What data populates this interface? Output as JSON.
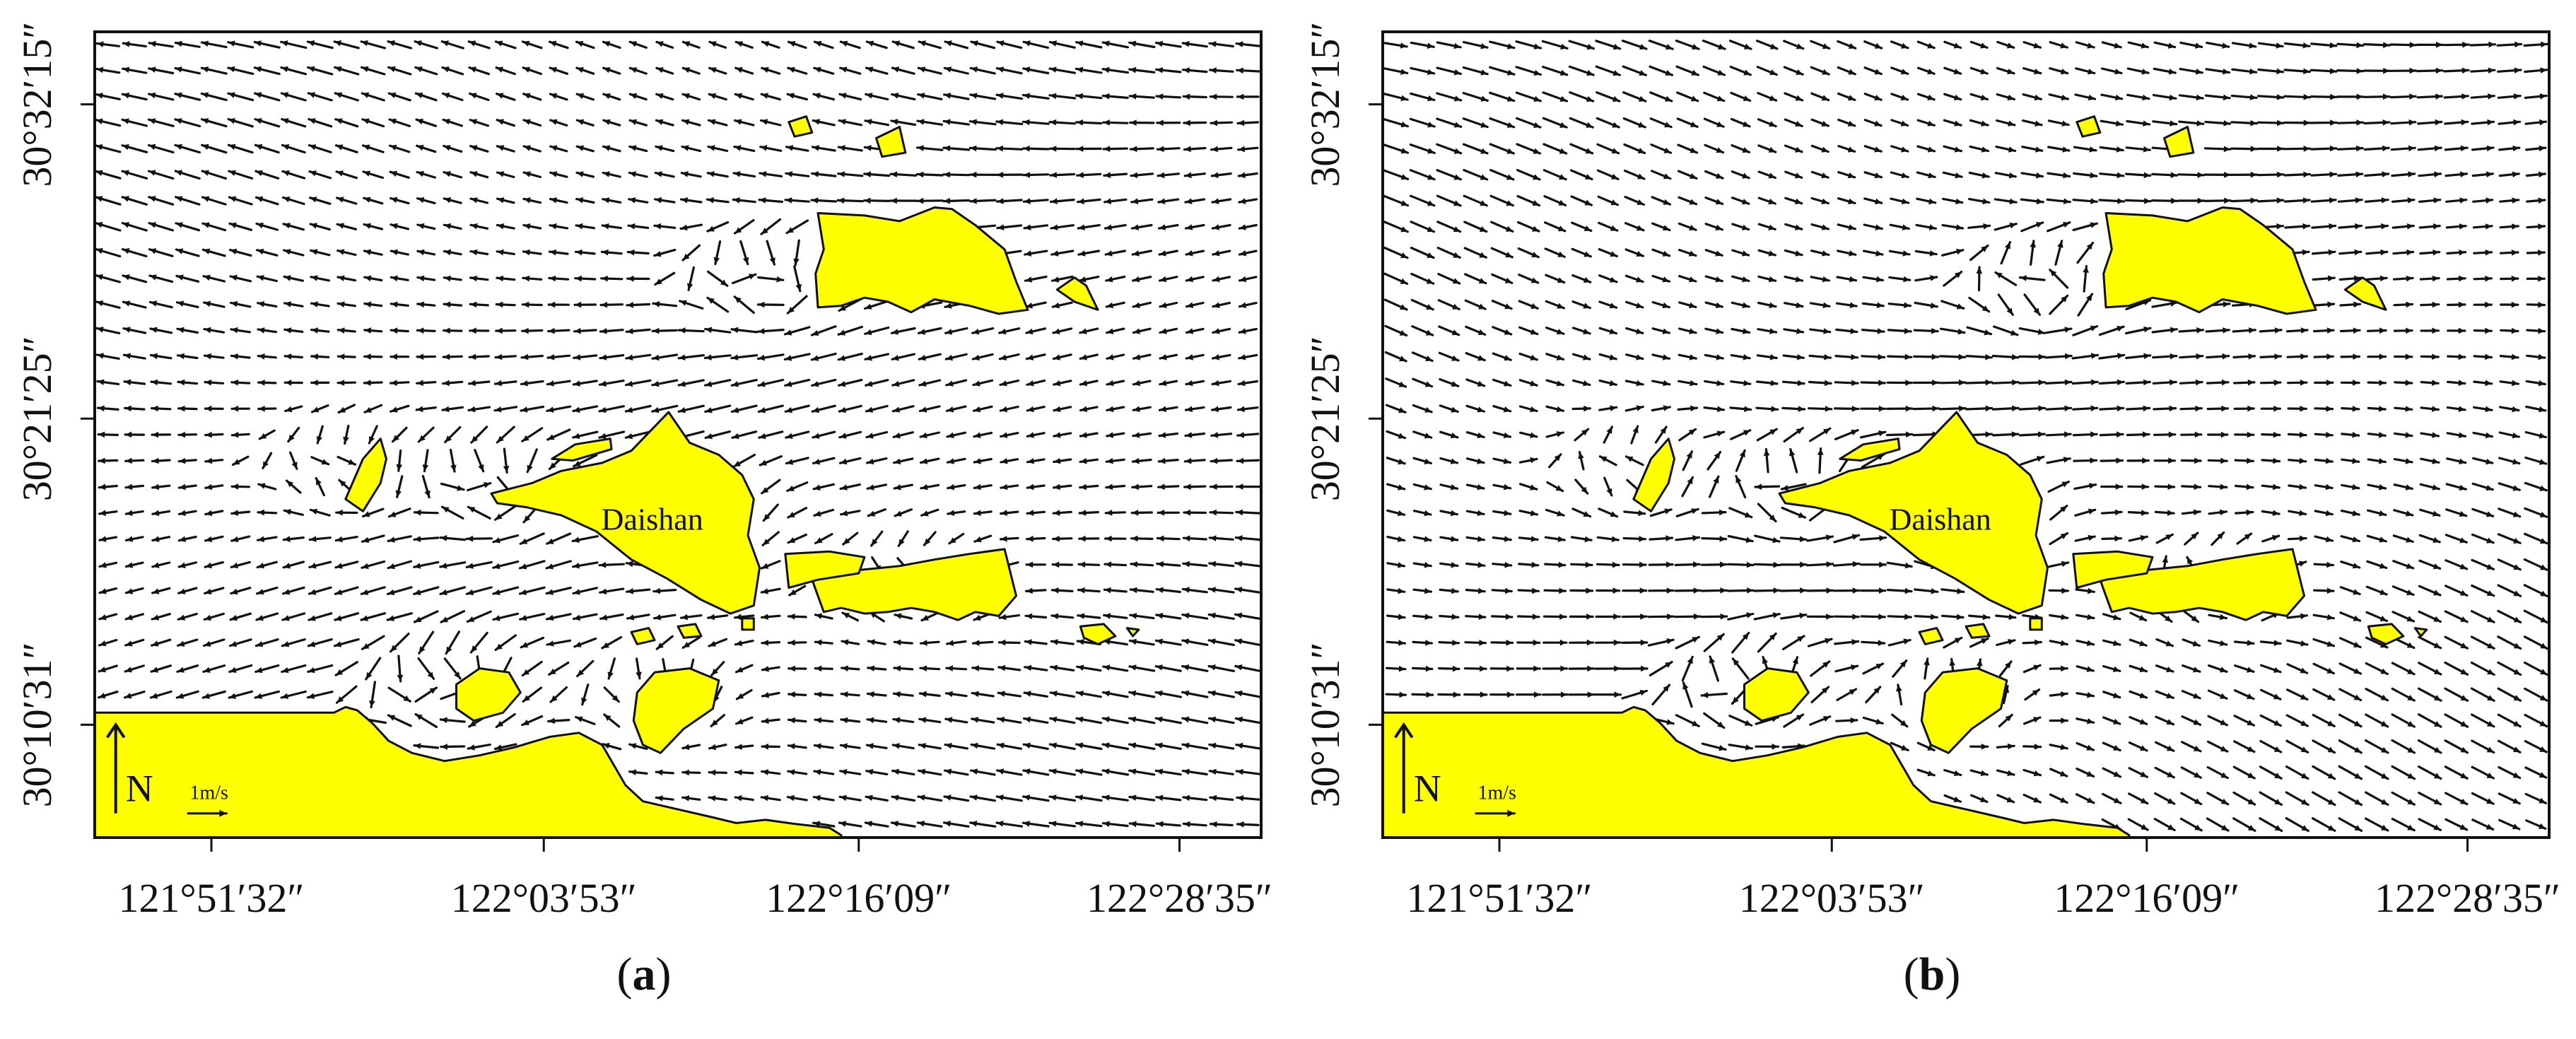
{
  "panels": [
    {
      "id": "a",
      "caption_open": "(",
      "caption_letter": "a",
      "caption_close": ")",
      "x_ticks": [
        "121°51′32″",
        "122°03′53″",
        "122°16′09″",
        "122°28′35″"
      ],
      "y_ticks": [
        "30°32′15″",
        "30°21′25″",
        "30°10′31″"
      ],
      "place_label": "Daishan",
      "north_label": "N",
      "scale_label": "1m/s",
      "flow_pattern": "ebb-westward"
    },
    {
      "id": "b",
      "caption_open": "(",
      "caption_letter": "b",
      "caption_close": ")",
      "x_ticks": [
        "121°51′32″",
        "122°03′53″",
        "122°16′09″",
        "122°28′35″"
      ],
      "y_ticks": [
        "30°32′15″",
        "30°21′25″",
        "30°10′31″"
      ],
      "place_label": "Daishan",
      "north_label": "N",
      "scale_label": "1m/s",
      "flow_pattern": "flood-eastward"
    }
  ],
  "colors": {
    "land": "#ffff00",
    "vector": "#111111",
    "frame": "#111111"
  }
}
